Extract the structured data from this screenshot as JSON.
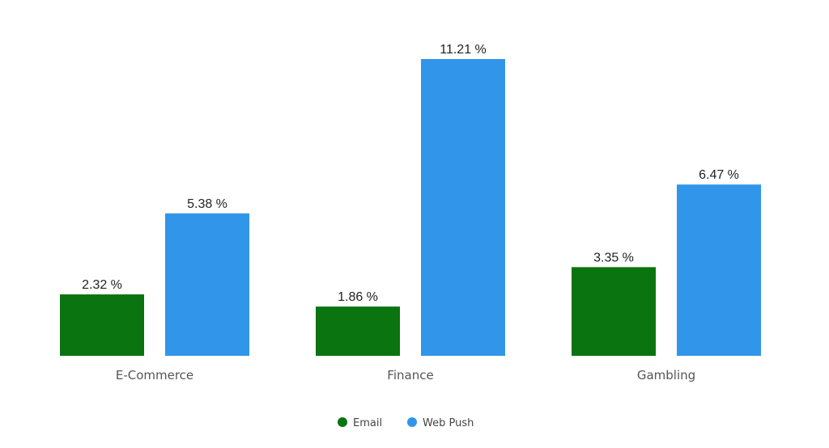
{
  "chart_data": {
    "type": "bar",
    "categories": [
      "E-Commerce",
      "Finance",
      "Gambling"
    ],
    "series": [
      {
        "name": "Email",
        "color": "#0a7410",
        "values": [
          2.32,
          1.86,
          3.35
        ],
        "labels": [
          "2.32 %",
          "1.86 %",
          "3.35 %"
        ]
      },
      {
        "name": "Web Push",
        "color": "#3196e9",
        "values": [
          5.38,
          11.21,
          6.47
        ],
        "labels": [
          "5.38 %",
          "11.21 %",
          "6.47 %"
        ]
      }
    ],
    "title": "",
    "xlabel": "",
    "ylabel": "",
    "ylim": [
      0,
      11.21
    ],
    "grid": false,
    "legend_position": "bottom-center"
  }
}
